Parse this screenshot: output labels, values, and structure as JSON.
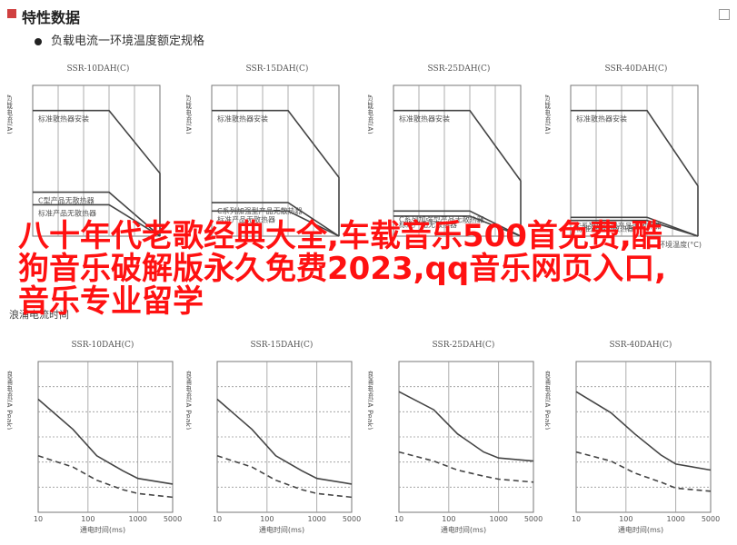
{
  "header": {
    "title": "特性数据",
    "subtitle": "负载电流一环境温度额定规格"
  },
  "overlay_text": "八十年代老歌经典大全,车载音乐500首免费,酷狗音乐破解版永久免费2023,qq音乐网页入口,音乐专业留学",
  "midnote": "浪涌电流时间",
  "footnote": "",
  "colors": {
    "accent": "#ff1111",
    "line": "#444444"
  },
  "chart_data": [
    {
      "type": "line",
      "title": "SSR-10DAH(C)",
      "ylabel": "负载电流(A)",
      "xlabel": "",
      "annotations": [
        "标准散热器安装",
        "C型产品无散热器",
        "标准产品无散热器"
      ],
      "series": [
        {
          "values": [
            [
              -20,
              10
            ],
            [
              40,
              10
            ],
            [
              80,
              5
            ],
            [
              80,
              0
            ]
          ]
        },
        {
          "values": [
            [
              -20,
              3.5
            ],
            [
              40,
              3.5
            ],
            [
              80,
              0
            ]
          ]
        },
        {
          "values": [
            [
              -20,
              2.5
            ],
            [
              40,
              2.5
            ],
            [
              80,
              0
            ]
          ]
        }
      ],
      "xlim": [
        -20,
        80
      ],
      "ylim": [
        0,
        12
      ]
    },
    {
      "type": "line",
      "title": "SSR-15DAH(C)",
      "ylabel": "负载电流(A)",
      "xlabel": "",
      "annotations": [
        "标准散热器安装",
        "C系列加强型产品无散热器",
        "标准产品无散热器"
      ],
      "series": [
        {
          "values": [
            [
              -20,
              15
            ],
            [
              40,
              15
            ],
            [
              80,
              7
            ],
            [
              80,
              0
            ]
          ]
        },
        {
          "values": [
            [
              -20,
              4
            ],
            [
              40,
              4
            ],
            [
              80,
              0
            ]
          ]
        },
        {
          "values": [
            [
              -20,
              3
            ],
            [
              40,
              3
            ],
            [
              80,
              0
            ]
          ]
        }
      ],
      "xlim": [
        -20,
        80
      ],
      "ylim": [
        0,
        18
      ]
    },
    {
      "type": "line",
      "title": "SSR-25DAH(C)",
      "ylabel": "负载电流(A)",
      "xlabel": "",
      "annotations": [
        "标准散热器安装",
        "C系列加强型产品无散热器",
        "标准产品无散热器"
      ],
      "series": [
        {
          "values": [
            [
              -20,
              25
            ],
            [
              40,
              25
            ],
            [
              80,
              11
            ],
            [
              80,
              0
            ]
          ]
        },
        {
          "values": [
            [
              -20,
              5
            ],
            [
              40,
              5
            ],
            [
              80,
              0
            ]
          ]
        },
        {
          "values": [
            [
              -20,
              4
            ],
            [
              40,
              4
            ],
            [
              80,
              0
            ]
          ]
        }
      ],
      "xlim": [
        -20,
        80
      ],
      "ylim": [
        0,
        30
      ]
    },
    {
      "type": "line",
      "title": "SSR-40DAH(C)",
      "ylabel": "负载电流(A)",
      "xlabel": "环境温度(°C)",
      "annotations": [
        "标准散热器安装",
        "C系列加强型产品无散热器",
        "标准产品无散热器"
      ],
      "series": [
        {
          "values": [
            [
              -20,
              40
            ],
            [
              40,
              40
            ],
            [
              80,
              16
            ],
            [
              80,
              0
            ]
          ]
        },
        {
          "values": [
            [
              -20,
              6
            ],
            [
              40,
              6
            ],
            [
              80,
              0
            ]
          ]
        },
        {
          "values": [
            [
              -20,
              5
            ],
            [
              40,
              5
            ],
            [
              80,
              0
            ]
          ]
        }
      ],
      "xlim": [
        -20,
        80
      ],
      "ylim": [
        0,
        48
      ]
    },
    {
      "type": "line",
      "title": "SSR-10DAH(C)",
      "ylabel": "浪涌电流(A Peak)",
      "xlabel": "通电时间(ms)",
      "x_ticks": [
        "10",
        "100",
        "1000",
        "5000"
      ],
      "series": [
        {
          "values": [
            [
              10,
              60
            ],
            [
              50,
              44
            ],
            [
              150,
              30
            ],
            [
              500,
              22
            ],
            [
              1000,
              18
            ],
            [
              5000,
              15
            ]
          ]
        },
        {
          "values": [
            [
              10,
              30
            ],
            [
              50,
              24
            ],
            [
              150,
              17
            ],
            [
              500,
              12
            ],
            [
              1000,
              10
            ],
            [
              5000,
              8
            ]
          ]
        }
      ],
      "ylim": [
        0,
        80
      ]
    },
    {
      "type": "line",
      "title": "SSR-15DAH(C)",
      "ylabel": "浪涌电流(A Peak)",
      "xlabel": "通电时间(ms)",
      "x_ticks": [
        "10",
        "100",
        "1000",
        "5000"
      ],
      "series": [
        {
          "values": [
            [
              10,
              60
            ],
            [
              50,
              44
            ],
            [
              150,
              30
            ],
            [
              500,
              22
            ],
            [
              1000,
              18
            ],
            [
              5000,
              15
            ]
          ]
        },
        {
          "values": [
            [
              10,
              30
            ],
            [
              50,
              24
            ],
            [
              150,
              17
            ],
            [
              500,
              12
            ],
            [
              1000,
              10
            ],
            [
              5000,
              8
            ]
          ]
        }
      ],
      "ylim": [
        0,
        80
      ]
    },
    {
      "type": "line",
      "title": "SSR-25DAH(C)",
      "ylabel": "浪涌电流(A Peak)",
      "xlabel": "通电时间(ms)",
      "x_ticks": [
        "10",
        "100",
        "1000",
        "5000"
      ],
      "series": [
        {
          "values": [
            [
              10,
              200
            ],
            [
              50,
              170
            ],
            [
              150,
              130
            ],
            [
              500,
              100
            ],
            [
              1000,
              90
            ],
            [
              5000,
              85
            ]
          ]
        },
        {
          "values": [
            [
              10,
              100
            ],
            [
              50,
              85
            ],
            [
              150,
              70
            ],
            [
              500,
              60
            ],
            [
              1000,
              55
            ],
            [
              5000,
              50
            ]
          ]
        }
      ],
      "ylim": [
        0,
        250
      ]
    },
    {
      "type": "line",
      "title": "SSR-40DAH(C)",
      "ylabel": "浪涌电流(A Peak)",
      "xlabel": "通电时间(ms)",
      "x_ticks": [
        "10",
        "100",
        "1000",
        "5000"
      ],
      "series": [
        {
          "values": [
            [
              10,
              400
            ],
            [
              50,
              330
            ],
            [
              150,
              260
            ],
            [
              500,
              190
            ],
            [
              1000,
              160
            ],
            [
              5000,
              140
            ]
          ]
        },
        {
          "values": [
            [
              10,
              200
            ],
            [
              50,
              170
            ],
            [
              150,
              130
            ],
            [
              500,
              100
            ],
            [
              1000,
              80
            ],
            [
              5000,
              70
            ]
          ]
        }
      ],
      "ylim": [
        0,
        500
      ]
    }
  ]
}
